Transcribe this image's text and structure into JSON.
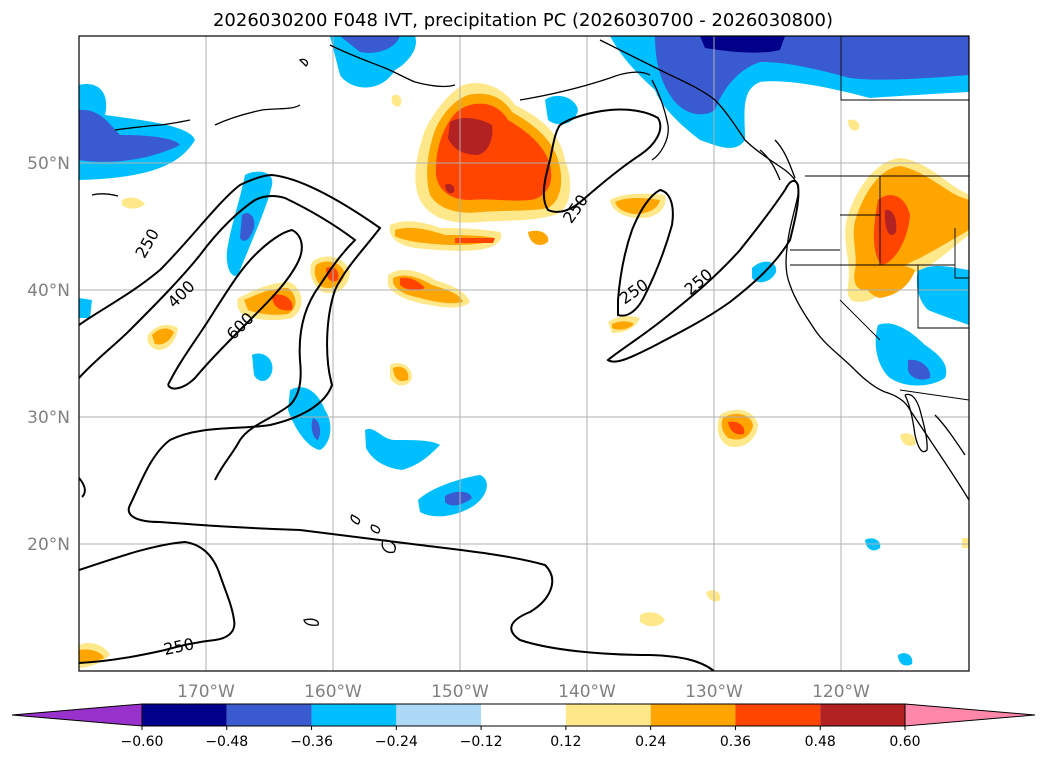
{
  "title": "2026030200 F048 IVT, precipitation PC (2026030700 - 2026030800)",
  "latitude_labels": [
    "50°N",
    "40°N",
    "30°N",
    "20°N"
  ],
  "longitude_labels": [
    "170°W",
    "160°W",
    "150°W",
    "140°W",
    "130°W",
    "120°W"
  ],
  "colorbar": {
    "tick_labels": [
      "−0.60",
      "−0.48",
      "−0.36",
      "−0.24",
      "−0.12",
      "0.12",
      "0.24",
      "0.36",
      "0.48",
      "0.60"
    ],
    "bins": [
      {
        "color": "#9932cc"
      },
      {
        "color": "#00008b"
      },
      {
        "color": "#3a5bd0"
      },
      {
        "color": "#00bfff"
      },
      {
        "color": "#add8f6"
      },
      {
        "color": "#ffffff"
      },
      {
        "color": "#ffe88a"
      },
      {
        "color": "#ffa500"
      },
      {
        "color": "#ff4500"
      },
      {
        "color": "#b22222"
      },
      {
        "color": "#ff88aa"
      }
    ]
  },
  "ivt_contour_labels": [
    "250",
    "400",
    "600",
    "250",
    "250",
    "250",
    "250"
  ]
}
